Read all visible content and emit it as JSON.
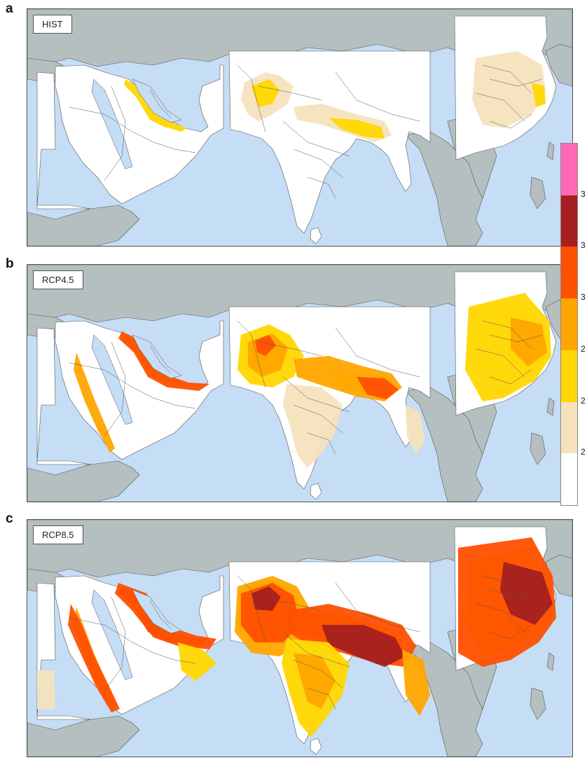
{
  "panels": [
    {
      "letter": "a",
      "scenario": "HIST"
    },
    {
      "letter": "b",
      "scenario": "RCP4.5"
    },
    {
      "letter": "c",
      "scenario": "RCP8.5"
    }
  ],
  "colorbar": {
    "colors": [
      "#ffffff",
      "#f5e2bd",
      "#ffd700",
      "#ffa500",
      "#ff5000",
      "#a52020",
      "#ff69b4"
    ],
    "tick_labels": [
      "2",
      "2",
      "2",
      "3",
      "3",
      "3"
    ]
  },
  "colors": {
    "ocean": "#c5ddf5",
    "land_outside": "#b5bfbf",
    "land_inside": "#ffffff",
    "borders": "#555555"
  }
}
